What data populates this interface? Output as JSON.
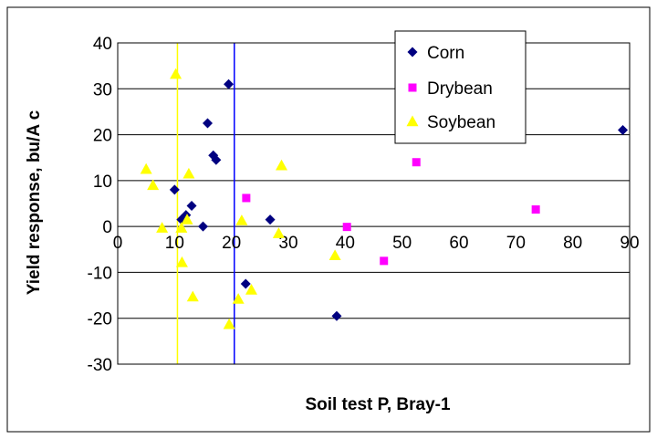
{
  "chart_data": {
    "type": "scatter",
    "xlabel": "Soil test P, Bray-1",
    "ylabel": "Yield response, bu/A c",
    "xlim": [
      0,
      90
    ],
    "ylim": [
      -30,
      40
    ],
    "xticks": [
      0,
      10,
      20,
      30,
      40,
      50,
      60,
      70,
      80,
      90
    ],
    "yticks": [
      40,
      30,
      20,
      10,
      0,
      -10,
      -20,
      -30
    ],
    "grid": "horizontal",
    "legend_position": "top-right",
    "vertical_lines": [
      {
        "x": 10.5,
        "color": "#FFFF00"
      },
      {
        "x": 20.5,
        "color": "#0000FF"
      }
    ],
    "series": [
      {
        "name": "Corn",
        "marker": "diamond",
        "color": "#000080",
        "points": [
          {
            "x": 10,
            "y": 8
          },
          {
            "x": 11.2,
            "y": 1.5
          },
          {
            "x": 12,
            "y": 2.5
          },
          {
            "x": 13,
            "y": 4.5
          },
          {
            "x": 15,
            "y": 0
          },
          {
            "x": 15.8,
            "y": 22.5
          },
          {
            "x": 16.8,
            "y": 15.5
          },
          {
            "x": 17.3,
            "y": 14.5
          },
          {
            "x": 19.5,
            "y": 31
          },
          {
            "x": 22.5,
            "y": -12.5
          },
          {
            "x": 26.8,
            "y": 1.5
          },
          {
            "x": 38.5,
            "y": -19.5
          },
          {
            "x": 88.8,
            "y": 21
          }
        ]
      },
      {
        "name": "Drybean",
        "marker": "square",
        "color": "#FF00FF",
        "points": [
          {
            "x": 22.6,
            "y": 6.2
          },
          {
            "x": 40.3,
            "y": -0.1
          },
          {
            "x": 46.8,
            "y": -7.5
          },
          {
            "x": 52.5,
            "y": 14
          },
          {
            "x": 73.5,
            "y": 3.7
          }
        ]
      },
      {
        "name": "Soybean",
        "marker": "triangle",
        "color": "#FFFF00",
        "points": [
          {
            "x": 5,
            "y": 12.5
          },
          {
            "x": 6.2,
            "y": 9
          },
          {
            "x": 7.8,
            "y": -0.3
          },
          {
            "x": 10.2,
            "y": 33.2
          },
          {
            "x": 11.2,
            "y": -0.3
          },
          {
            "x": 11.3,
            "y": -7.8
          },
          {
            "x": 12.5,
            "y": 11.5
          },
          {
            "x": 13.2,
            "y": -15.3
          },
          {
            "x": 12.2,
            "y": 1.5
          },
          {
            "x": 19.6,
            "y": -21.3
          },
          {
            "x": 21.2,
            "y": -15.8
          },
          {
            "x": 21.8,
            "y": 1.3
          },
          {
            "x": 23.5,
            "y": -13.8
          },
          {
            "x": 28.3,
            "y": -1.5
          },
          {
            "x": 28.8,
            "y": 13.3
          },
          {
            "x": 38.2,
            "y": -6.3
          }
        ]
      }
    ]
  }
}
